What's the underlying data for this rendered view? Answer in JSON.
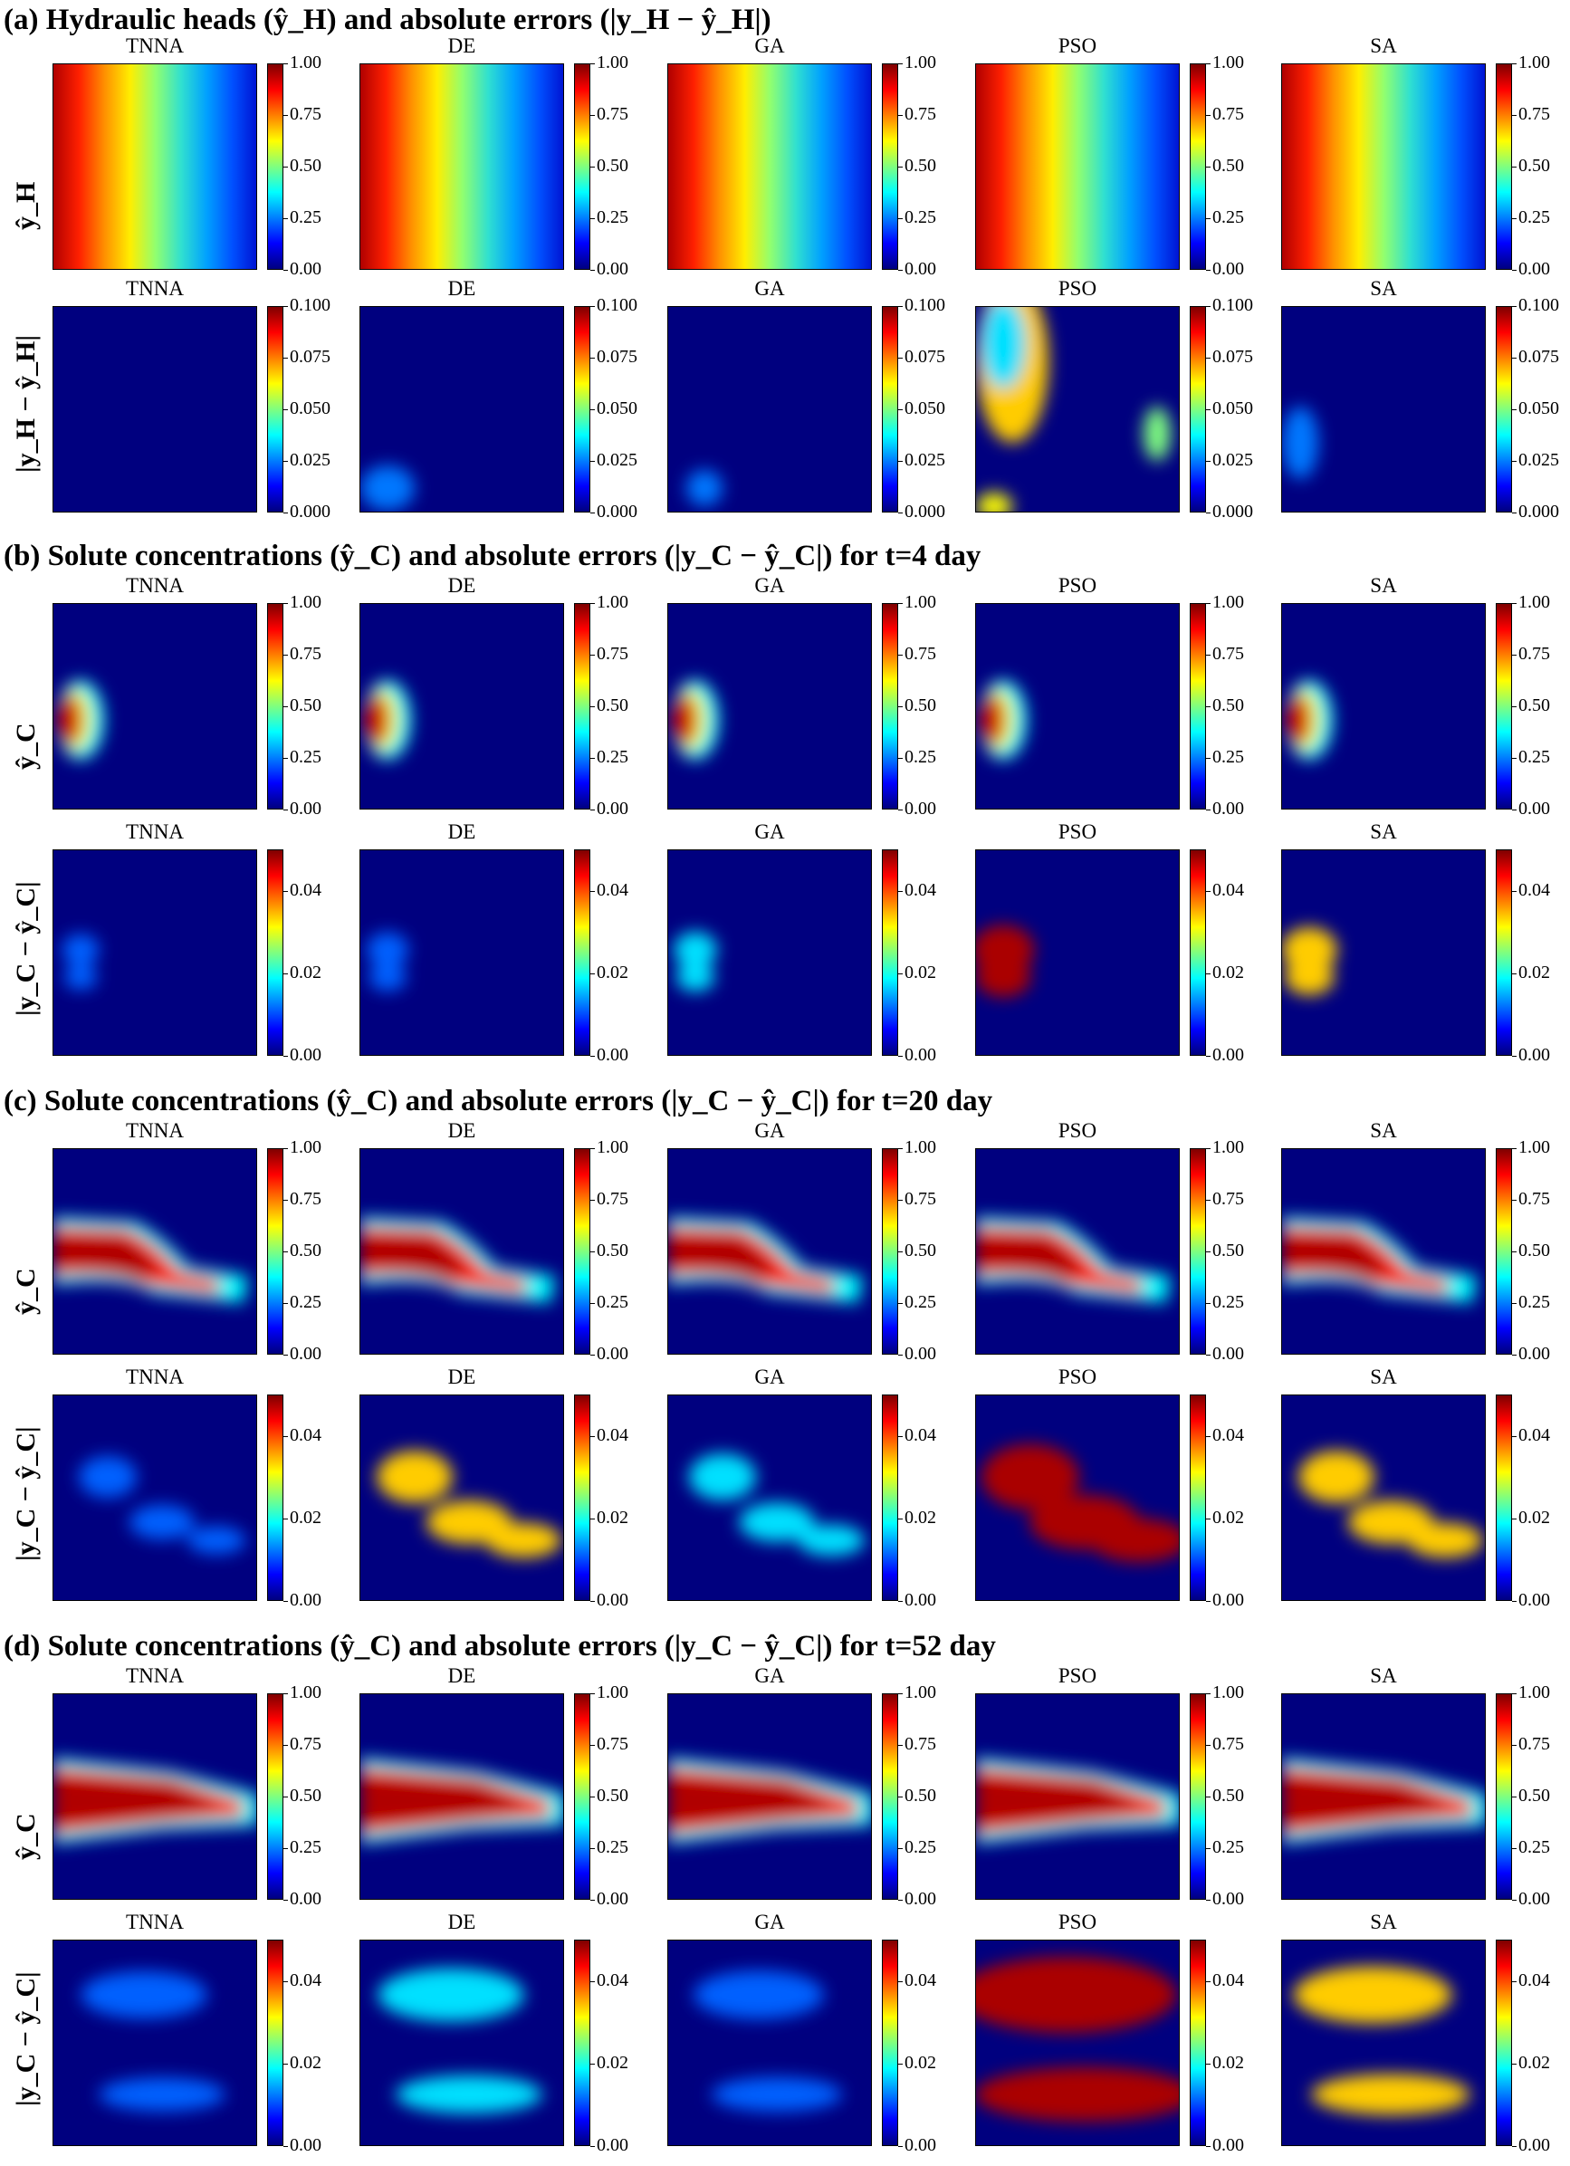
{
  "sections": [
    {
      "title": "(a) Hydraulic heads (ŷ_H) and absolute errors (|y_H − ŷ_H|)",
      "row_labels": [
        "ŷ_H",
        "|y_H − ŷ_H|"
      ]
    },
    {
      "title": "(b) Solute concentrations (ŷ_C) and absolute errors (|y_C − ŷ_C|) for t=4 day",
      "row_labels": [
        "ŷ_C",
        "|y_C − ŷ_C|"
      ]
    },
    {
      "title": "(c) Solute concentrations (ŷ_C) and absolute errors (|y_C − ŷ_C|) for t=20 day",
      "row_labels": [
        "ŷ_C",
        "|y_C − ŷ_C|"
      ]
    },
    {
      "title": "(d) Solute concentrations (ŷ_C) and absolute errors (|y_C − ŷ_C|) for t=52 day",
      "row_labels": [
        "ŷ_C",
        "|y_C − ŷ_C|"
      ]
    }
  ],
  "methods": [
    "TNNA",
    "DE",
    "GA",
    "PSO",
    "SA"
  ],
  "colormap": [
    "#00007f",
    "#0000ff",
    "#007fff",
    "#00ffff",
    "#7fff7f",
    "#ffff00",
    "#ff7f00",
    "#ff0000",
    "#7f0000"
  ],
  "chart_data": {
    "type": "heatmap",
    "colorbar_ticks": {
      "prediction": [
        "0.00",
        "0.25",
        "0.50",
        "0.75",
        "1.00"
      ],
      "error_head": [
        "0.000",
        "0.025",
        "0.050",
        "0.075",
        "0.100"
      ],
      "error_conc": [
        "0.00",
        "0.02",
        "0.04"
      ]
    },
    "colorbar_ranges": {
      "prediction": [
        0,
        1
      ],
      "error_head": [
        0,
        0.1
      ],
      "error_conc": [
        0,
        0.05
      ]
    }
  }
}
